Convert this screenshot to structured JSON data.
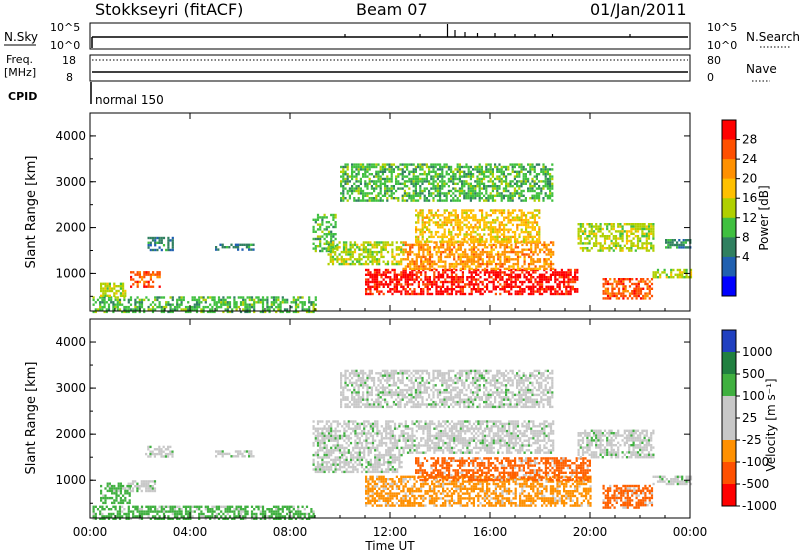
{
  "header": {
    "station": "Stokkseyri (fitACF)",
    "beam": "Beam 07",
    "date": "01/Jan/2011"
  },
  "top_panel": {
    "left_label": "N.Sky",
    "right_label": "N.Search",
    "left_ticks": [
      "10^5",
      "10^0"
    ],
    "right_ticks": [
      "10^5",
      "10^0"
    ]
  },
  "freq_panel": {
    "left_label_1": "Freq.",
    "left_label_2": "[MHz]",
    "right_label": "Nave",
    "left_ticks": [
      "18",
      "8"
    ],
    "right_ticks": [
      "80",
      "0"
    ]
  },
  "cpid": {
    "label": "CPID",
    "value": "normal 150"
  },
  "power_panel": {
    "ylabel": "Slant Range [km]",
    "yticks": [
      "4000",
      "3000",
      "2000",
      "1000"
    ],
    "colorbar_label": "Power [dB]",
    "colorbar_ticks": [
      "28",
      "24",
      "20",
      "16",
      "12",
      "8",
      "4"
    ],
    "colorbar_colors": [
      "#ff0000",
      "#ff5000",
      "#ff9000",
      "#ffc000",
      "#b0d000",
      "#40c040",
      "#308060",
      "#2060b0",
      "#0000ff"
    ]
  },
  "velocity_panel": {
    "ylabel": "Slant Range [km]",
    "yticks": [
      "4000",
      "3000",
      "2000",
      "1000"
    ],
    "colorbar_label": "Velocity [m s⁻¹]",
    "colorbar_ticks": [
      "1000",
      "500",
      "100",
      "25",
      "-25",
      "-100",
      "-500",
      "-1000"
    ],
    "colorbar_colors": [
      "#2040c0",
      "#208040",
      "#40b040",
      "#c8c8c8",
      "#c8c8c8",
      "#ff9000",
      "#ff5000",
      "#ff0000"
    ]
  },
  "xaxis": {
    "ticks": [
      "00:00",
      "04:00",
      "08:00",
      "12:00",
      "16:00",
      "20:00",
      "00:00"
    ],
    "label": "Time UT"
  },
  "chart_data": {
    "type": "heatmap",
    "x_range_hours": [
      0,
      24
    ],
    "y_range_km": [
      180,
      4500
    ],
    "power_regions": [
      {
        "t0": 0.1,
        "t1": 9.0,
        "r0": 180,
        "r1": 500,
        "level": 8
      },
      {
        "t0": 0.4,
        "t1": 1.4,
        "r0": 500,
        "r1": 800,
        "level": 12
      },
      {
        "t0": 1.6,
        "t1": 2.8,
        "r0": 700,
        "r1": 1050,
        "level": 24
      },
      {
        "t0": 2.3,
        "t1": 3.3,
        "r0": 1500,
        "r1": 1800,
        "level": 4
      },
      {
        "t0": 5.0,
        "t1": 6.5,
        "r0": 1500,
        "r1": 1650,
        "level": 4
      },
      {
        "t0": 8.9,
        "t1": 9.8,
        "r0": 1500,
        "r1": 2300,
        "level": 8
      },
      {
        "t0": 9.5,
        "t1": 12.5,
        "r0": 1200,
        "r1": 1700,
        "level": 12
      },
      {
        "t0": 11.0,
        "t1": 19.5,
        "r0": 550,
        "r1": 1100,
        "level": 28
      },
      {
        "t0": 12.5,
        "t1": 18.5,
        "r0": 1100,
        "r1": 1700,
        "level": 20
      },
      {
        "t0": 13.0,
        "t1": 18.0,
        "r0": 1700,
        "r1": 2400,
        "level": 16
      },
      {
        "t0": 10.0,
        "t1": 18.5,
        "r0": 2600,
        "r1": 3400,
        "level": 8
      },
      {
        "t0": 19.5,
        "t1": 22.5,
        "r0": 1500,
        "r1": 2100,
        "level": 12
      },
      {
        "t0": 20.5,
        "t1": 22.5,
        "r0": 450,
        "r1": 900,
        "level": 24
      },
      {
        "t0": 22.5,
        "t1": 24.0,
        "r0": 900,
        "r1": 1100,
        "level": 12
      },
      {
        "t0": 23.0,
        "t1": 24.0,
        "r0": 1550,
        "r1": 1750,
        "level": 4
      }
    ],
    "velocity_regions": [
      {
        "t0": 0.1,
        "t1": 9.0,
        "r0": 180,
        "r1": 450,
        "level": 100
      },
      {
        "t0": 0.4,
        "t1": 1.6,
        "r0": 500,
        "r1": 950,
        "level": 100
      },
      {
        "t0": 1.5,
        "t1": 2.6,
        "r0": 750,
        "r1": 1000,
        "level": 25
      },
      {
        "t0": 2.2,
        "t1": 3.3,
        "r0": 1500,
        "r1": 1750,
        "level": 25
      },
      {
        "t0": 5.0,
        "t1": 6.5,
        "r0": 1500,
        "r1": 1650,
        "level": 25
      },
      {
        "t0": 8.9,
        "t1": 12.5,
        "r0": 1200,
        "r1": 2300,
        "level": 25
      },
      {
        "t0": 11.0,
        "t1": 20.0,
        "r0": 450,
        "r1": 1100,
        "level": -100
      },
      {
        "t0": 13.0,
        "t1": 20.0,
        "r0": 1000,
        "r1": 1500,
        "level": -500
      },
      {
        "t0": 12.5,
        "t1": 18.5,
        "r0": 1600,
        "r1": 2300,
        "level": 25
      },
      {
        "t0": 10.0,
        "t1": 18.5,
        "r0": 2600,
        "r1": 3400,
        "level": 25
      },
      {
        "t0": 19.5,
        "t1": 22.5,
        "r0": 1500,
        "r1": 2100,
        "level": 25
      },
      {
        "t0": 20.5,
        "t1": 22.5,
        "r0": 400,
        "r1": 900,
        "level": -500
      },
      {
        "t0": 22.5,
        "t1": 24.0,
        "r0": 900,
        "r1": 1100,
        "level": 25
      }
    ]
  }
}
